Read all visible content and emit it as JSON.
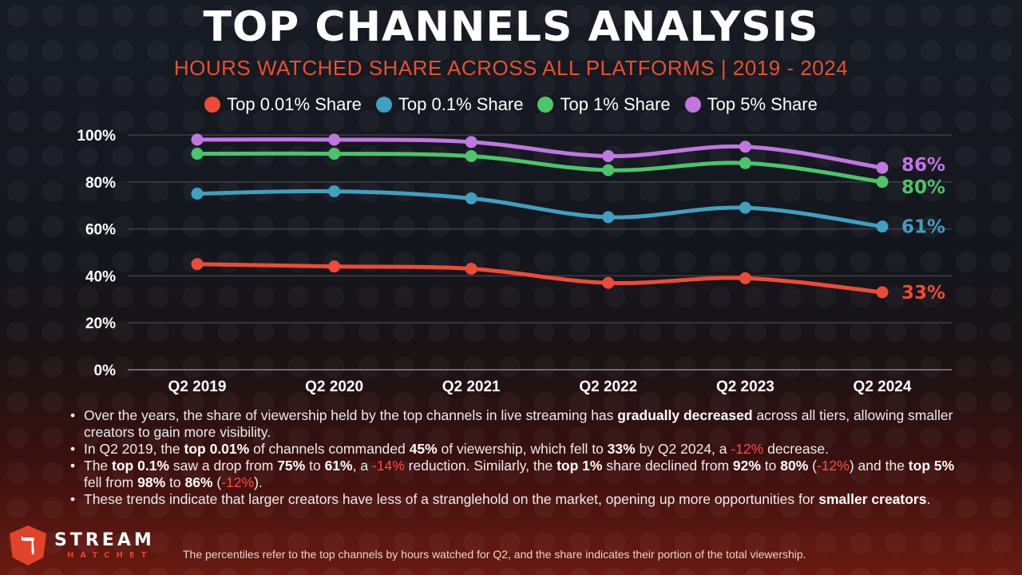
{
  "header": {
    "title": "TOP CHANNELS ANALYSIS",
    "subtitle": "HOURS WATCHED SHARE ACROSS ALL PLATFORMS | 2019 - 2024"
  },
  "chart_data": {
    "type": "line",
    "title": "TOP CHANNELS ANALYSIS",
    "subtitle": "HOURS WATCHED SHARE ACROSS ALL PLATFORMS | 2019 - 2024",
    "xlabel": "",
    "ylabel": "",
    "categories": [
      "Q2 2019",
      "Q2 2020",
      "Q2 2021",
      "Q2 2022",
      "Q2 2023",
      "Q2 2024"
    ],
    "ylim": [
      0,
      100
    ],
    "yticks": [
      0,
      20,
      40,
      60,
      80,
      100
    ],
    "ytick_labels": [
      "0%",
      "20%",
      "40%",
      "60%",
      "80%",
      "100%"
    ],
    "grid": true,
    "legend_position": "top-center",
    "series": [
      {
        "name": "Top 0.01% Share",
        "color": "#ee4b36",
        "values": [
          45,
          44,
          43,
          37,
          39,
          33
        ],
        "end_label": "33%"
      },
      {
        "name": "Top 0.1% Share",
        "color": "#3fa0bf",
        "values": [
          75,
          76,
          73,
          65,
          69,
          61
        ],
        "end_label": "61%"
      },
      {
        "name": "Top 1% Share",
        "color": "#4cc46a",
        "values": [
          92,
          92,
          91,
          85,
          88,
          80
        ],
        "end_label": "80%"
      },
      {
        "name": "Top 5% Share",
        "color": "#c077e0",
        "values": [
          98,
          98,
          97,
          91,
          95,
          86
        ],
        "end_label": "86%"
      }
    ]
  },
  "bullets": [
    [
      {
        "t": "Over the years, the share of viewership held by the top channels in live streaming has "
      },
      {
        "t": "gradually decreased",
        "b": true
      },
      {
        "t": " across all tiers, allowing smaller creators to gain more visibility."
      }
    ],
    [
      {
        "t": "In Q2 2019, the "
      },
      {
        "t": "top 0.01%",
        "b": true
      },
      {
        "t": " of channels commanded "
      },
      {
        "t": "45%",
        "b": true
      },
      {
        "t": " of viewership, which fell to "
      },
      {
        "t": "33%",
        "b": true
      },
      {
        "t": " by Q2 2024, a "
      },
      {
        "t": "-12%",
        "neg": true
      },
      {
        "t": " decrease."
      }
    ],
    [
      {
        "t": "The "
      },
      {
        "t": "top 0.1%",
        "b": true
      },
      {
        "t": " saw a drop from "
      },
      {
        "t": "75%",
        "b": true
      },
      {
        "t": " to "
      },
      {
        "t": "61%",
        "b": true
      },
      {
        "t": ", a "
      },
      {
        "t": "-14%",
        "neg": true
      },
      {
        "t": " reduction. Similarly, the "
      },
      {
        "t": "top 1%",
        "b": true
      },
      {
        "t": " share declined from "
      },
      {
        "t": "92%",
        "b": true
      },
      {
        "t": " to "
      },
      {
        "t": "80%",
        "b": true
      },
      {
        "t": " ("
      },
      {
        "t": "-12%",
        "neg": true
      },
      {
        "t": ") and the "
      },
      {
        "t": "top 5%",
        "b": true
      },
      {
        "t": " fell from "
      },
      {
        "t": "98%",
        "b": true
      },
      {
        "t": " to "
      },
      {
        "t": "86%",
        "b": true
      },
      {
        "t": " ("
      },
      {
        "t": "-12%",
        "neg": true
      },
      {
        "t": ")."
      }
    ],
    [
      {
        "t": "These trends indicate that larger creators have less of a stranglehold on the market, opening up more opportunities for "
      },
      {
        "t": "smaller creators",
        "b": true
      },
      {
        "t": "."
      }
    ]
  ],
  "brand": {
    "name_top": "STREAM",
    "name_bottom": "HATCHET",
    "icon": "hatchet-shield-icon",
    "accent": "#e0442a"
  },
  "footnote": "The percentiles refer to the top channels by hours watched for Q2, and the share indicates their portion of the total viewership."
}
